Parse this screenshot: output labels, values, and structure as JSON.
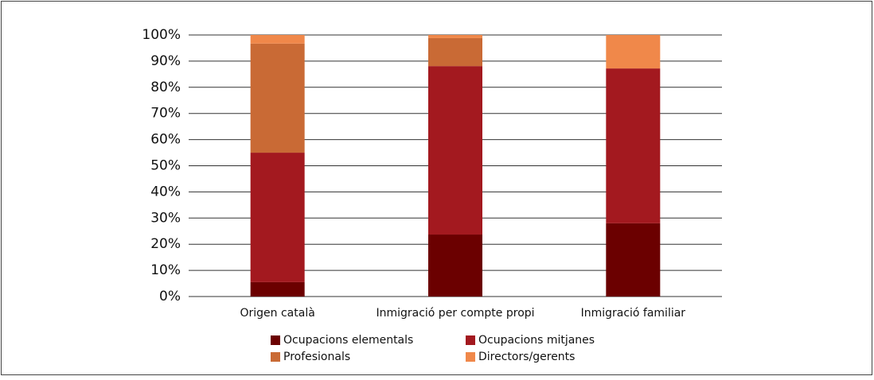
{
  "chart_data": {
    "type": "stacked_bar",
    "categories": [
      "Origen català",
      "Inmigració per compte propi",
      "Inmigració familiar"
    ],
    "series": [
      {
        "name": "Ocupacions elementals",
        "color": "#6b0000",
        "values": [
          5.5,
          23.7,
          28
        ]
      },
      {
        "name": "Ocupacions mitjanes",
        "color": "#a3191f",
        "values": [
          49.5,
          64.4,
          59.2
        ]
      },
      {
        "name": "Profesionals",
        "color": "#c96a35",
        "values": [
          41.7,
          10.7,
          0
        ]
      },
      {
        "name": "Directors/gerents",
        "color": "#f0884a",
        "values": [
          3.3,
          1.2,
          12.8
        ]
      }
    ],
    "ylim": [
      0,
      100
    ],
    "yticks": [
      {
        "value": 0,
        "label": "0%"
      },
      {
        "value": 10,
        "label": "10%"
      },
      {
        "value": 20,
        "label": "20%"
      },
      {
        "value": 30,
        "label": "30%"
      },
      {
        "value": 40,
        "label": "40%"
      },
      {
        "value": 50,
        "label": "50%"
      },
      {
        "value": 60,
        "label": "60%"
      },
      {
        "value": 70,
        "label": "70%"
      },
      {
        "value": 80,
        "label": "80%"
      },
      {
        "value": 90,
        "label": "90%"
      },
      {
        "value": 100,
        "label": "100%"
      }
    ],
    "grid": true,
    "legend": "bottom"
  }
}
